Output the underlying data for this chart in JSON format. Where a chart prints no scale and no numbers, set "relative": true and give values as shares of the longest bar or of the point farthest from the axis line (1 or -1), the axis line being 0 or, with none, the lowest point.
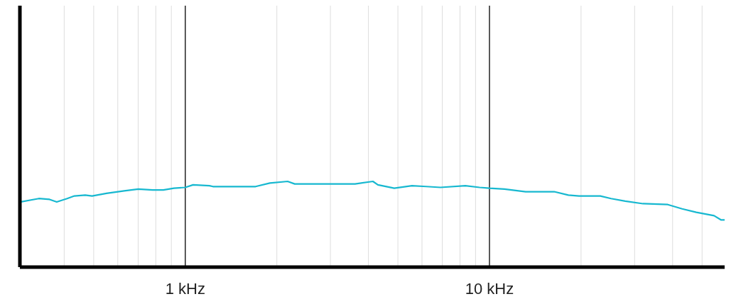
{
  "chart_data": {
    "type": "line",
    "relative": true,
    "log": "x",
    "grid": "x",
    "marker": "none",
    "line_style": "solid",
    "xlim": [
      0.286,
      59.3
    ],
    "xticks": [
      {
        "value": 0.4,
        "label": null
      },
      {
        "value": 0.5,
        "label": null
      },
      {
        "value": 0.6,
        "label": null
      },
      {
        "value": 0.7,
        "label": null
      },
      {
        "value": 0.8,
        "label": null
      },
      {
        "value": 0.9,
        "label": null
      },
      {
        "value": 1,
        "label": "1 kHz"
      },
      {
        "value": 2,
        "label": null
      },
      {
        "value": 3,
        "label": null
      },
      {
        "value": 4,
        "label": null
      },
      {
        "value": 5,
        "label": null
      },
      {
        "value": 6,
        "label": null
      },
      {
        "value": 7,
        "label": null
      },
      {
        "value": 8,
        "label": null
      },
      {
        "value": 9,
        "label": null
      },
      {
        "value": 10,
        "label": "10 kHz"
      },
      {
        "value": 20,
        "label": null
      },
      {
        "value": 30,
        "label": null
      },
      {
        "value": 40,
        "label": null
      },
      {
        "value": 50,
        "label": null
      }
    ],
    "series": [
      {
        "color": "#17b8d0",
        "x": [
          0.286,
          0.33,
          0.358,
          0.378,
          0.409,
          0.432,
          0.469,
          0.494,
          0.551,
          0.63,
          0.701,
          0.781,
          0.847,
          0.918,
          1,
          1.061,
          1.201,
          1.233,
          1.703,
          1.897,
          2.17,
          2.29,
          3.615,
          4.139,
          4.297,
          4.864,
          5.562,
          6.197,
          6.9,
          8.332,
          9.275,
          10,
          11.2,
          13.15,
          16.32,
          18.17,
          19.7,
          23.14,
          25.1,
          27.94,
          31.97,
          38.56,
          42.98,
          47.85,
          54.74,
          57.77,
          59.3
        ],
        "values": [
          0.76,
          0.8,
          0.79,
          0.76,
          0.8,
          0.83,
          0.84,
          0.83,
          0.86,
          0.89,
          0.91,
          0.9,
          0.9,
          0.92,
          0.93,
          0.96,
          0.95,
          0.94,
          0.94,
          0.98,
          1,
          0.97,
          0.97,
          1,
          0.96,
          0.92,
          0.95,
          0.94,
          0.93,
          0.95,
          0.93,
          0.92,
          0.91,
          0.88,
          0.88,
          0.84,
          0.83,
          0.83,
          0.8,
          0.77,
          0.74,
          0.73,
          0.68,
          0.64,
          0.6,
          0.55,
          0.55
        ]
      }
    ]
  }
}
